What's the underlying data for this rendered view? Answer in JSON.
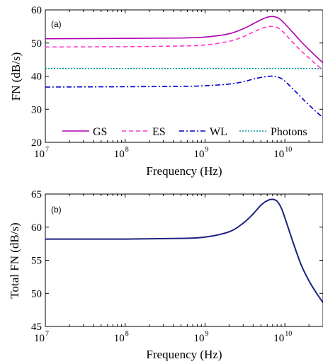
{
  "chart_data": [
    {
      "type": "line",
      "panel_label": "(a)",
      "xlabel": "Frequency (Hz)",
      "ylabel": "FN (dB/s)",
      "xscale": "log",
      "xlim": [
        10000000.0,
        30000000000.0
      ],
      "ylim": [
        20,
        60
      ],
      "x_ticks": [
        {
          "mantissa": "10",
          "exp": "7"
        },
        {
          "mantissa": "10",
          "exp": "8"
        },
        {
          "mantissa": "10",
          "exp": "9"
        },
        {
          "mantissa": "10",
          "exp": "10"
        }
      ],
      "y_ticks": [
        "20",
        "30",
        "40",
        "50",
        "60"
      ],
      "legend_position": "bottom",
      "series": [
        {
          "name": "GS",
          "color": "#b000b0",
          "dash": "solid",
          "x": [
            10000000.0,
            100000000.0,
            500000000.0,
            1000000000.0,
            2000000000.0,
            3000000000.0,
            4000000000.0,
            5000000000.0,
            6000000000.0,
            7000000000.0,
            8000000000.0,
            9000000000.0,
            10000000000.0,
            13000000000.0,
            16000000000.0,
            20000000000.0,
            25000000000.0,
            30000000000.0
          ],
          "y": [
            51.3,
            51.4,
            51.5,
            51.8,
            52.8,
            54.3,
            55.8,
            57.0,
            57.8,
            58.0,
            57.7,
            56.9,
            55.8,
            52.8,
            50.4,
            48.0,
            45.8,
            44.0
          ]
        },
        {
          "name": "ES",
          "color": "#ff33cc",
          "dash": "dash",
          "x": [
            10000000.0,
            100000000.0,
            500000000.0,
            1000000000.0,
            2000000000.0,
            3000000000.0,
            4000000000.0,
            5000000000.0,
            6000000000.0,
            7000000000.0,
            8000000000.0,
            9000000000.0,
            10000000000.0,
            13000000000.0,
            16000000000.0,
            20000000000.0,
            25000000000.0,
            30000000000.0
          ],
          "y": [
            48.8,
            48.9,
            49.1,
            49.4,
            50.5,
            51.9,
            53.3,
            54.3,
            54.9,
            55.0,
            54.7,
            53.9,
            52.8,
            49.8,
            47.6,
            45.5,
            43.4,
            41.8
          ]
        },
        {
          "name": "WL",
          "color": "#0000cc",
          "dash": "dashdot",
          "x": [
            10000000.0,
            100000000.0,
            500000000.0,
            1000000000.0,
            2000000000.0,
            3000000000.0,
            4000000000.0,
            5000000000.0,
            6000000000.0,
            7000000000.0,
            8000000000.0,
            9000000000.0,
            10000000000.0,
            13000000000.0,
            16000000000.0,
            20000000000.0,
            25000000000.0,
            30000000000.0
          ],
          "y": [
            36.7,
            36.8,
            36.9,
            37.1,
            37.6,
            38.3,
            39.1,
            39.6,
            39.9,
            40.0,
            39.8,
            39.3,
            38.5,
            35.8,
            33.6,
            31.3,
            29.1,
            27.5
          ]
        },
        {
          "name": "Photons",
          "color": "#009999",
          "dash": "dot",
          "x": [
            10000000.0,
            30000000000.0
          ],
          "y": [
            42.3,
            42.3
          ]
        }
      ]
    },
    {
      "type": "line",
      "panel_label": "(b)",
      "xlabel": "Frequency (Hz)",
      "ylabel": "Total FN (dB/s)",
      "xscale": "log",
      "xlim": [
        10000000.0,
        30000000000.0
      ],
      "ylim": [
        45,
        65
      ],
      "x_ticks": [
        {
          "mantissa": "10",
          "exp": "7"
        },
        {
          "mantissa": "10",
          "exp": "8"
        },
        {
          "mantissa": "10",
          "exp": "9"
        },
        {
          "mantissa": "10",
          "exp": "10"
        }
      ],
      "y_ticks": [
        "45",
        "50",
        "55",
        "60",
        "65"
      ],
      "series": [
        {
          "color": "#1a237e",
          "dash": "solid",
          "x": [
            10000000.0,
            100000000.0,
            500000000.0,
            1000000000.0,
            2000000000.0,
            3000000000.0,
            4000000000.0,
            5000000000.0,
            6000000000.0,
            7000000000.0,
            8000000000.0,
            9000000000.0,
            10000000000.0,
            13000000000.0,
            16000000000.0,
            20000000000.0,
            25000000000.0,
            30000000000.0
          ],
          "y": [
            58.2,
            58.2,
            58.3,
            58.5,
            59.3,
            60.6,
            62.0,
            63.3,
            64.0,
            64.2,
            63.9,
            62.9,
            61.4,
            57.3,
            54.3,
            51.9,
            50.0,
            48.6
          ]
        }
      ]
    }
  ]
}
